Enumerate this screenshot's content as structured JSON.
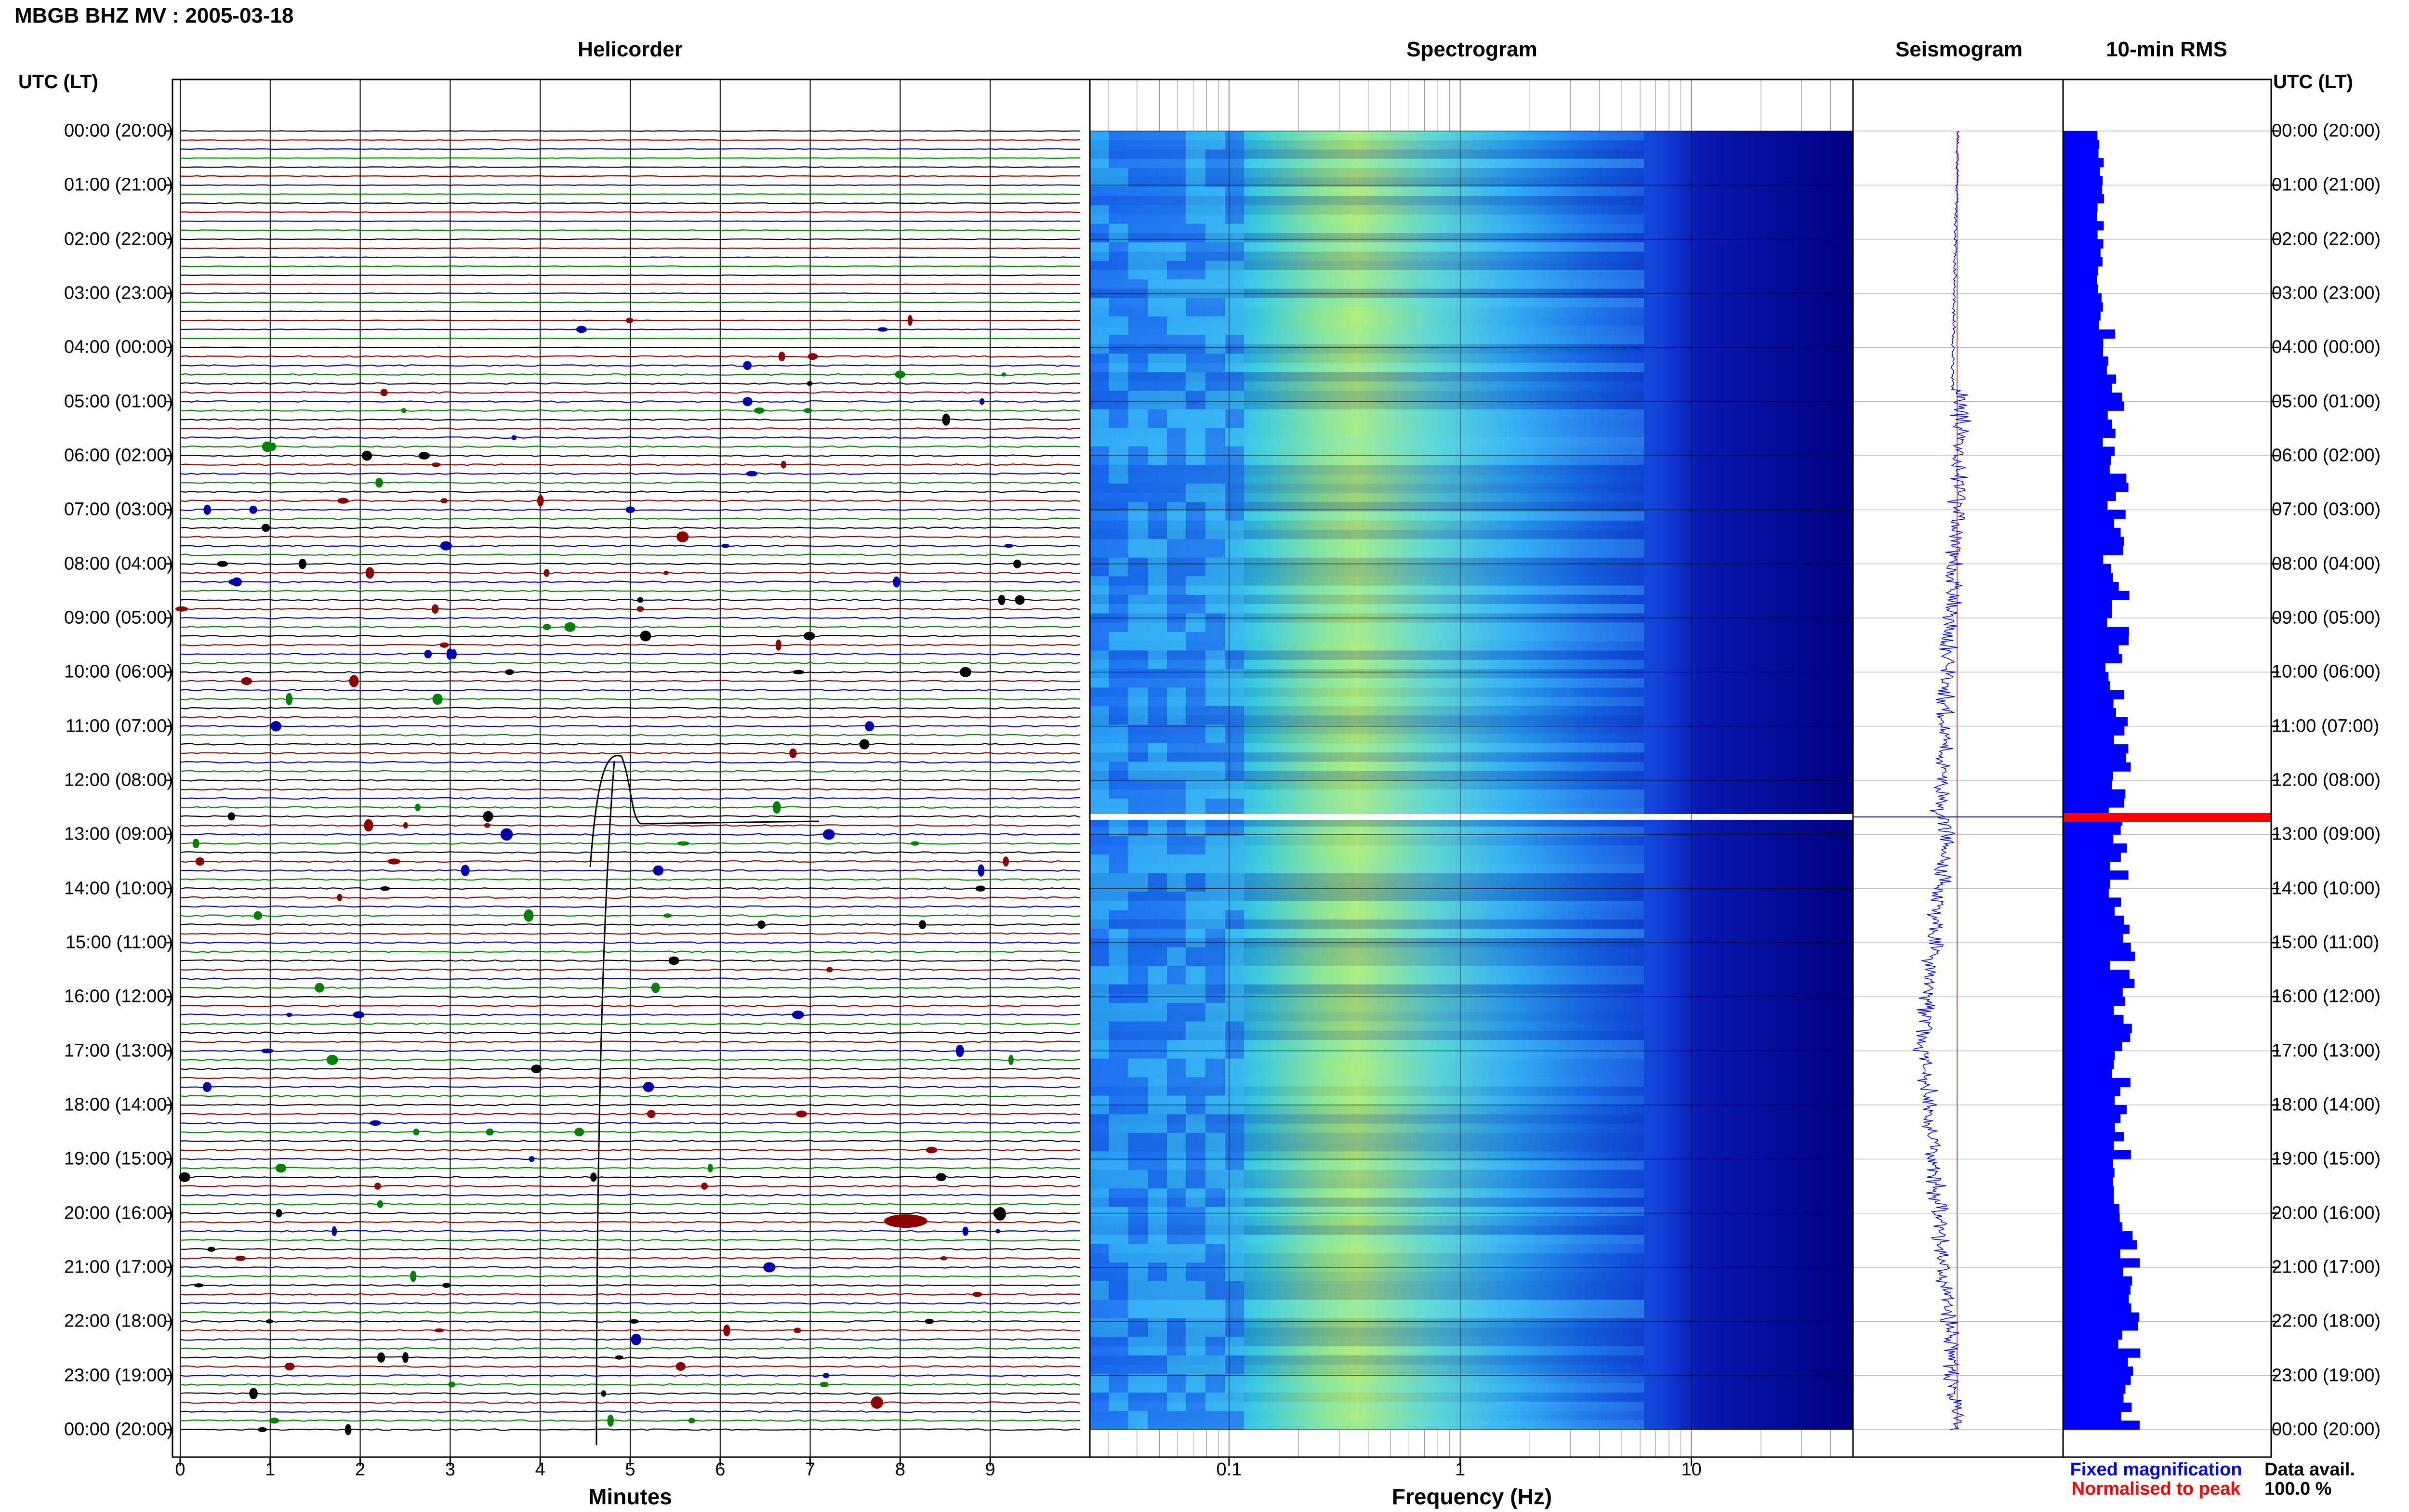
{
  "header": {
    "title": "MBGB BHZ MV : 2005-03-18",
    "utc_label_left": "UTC (LT)",
    "utc_label_right": "UTC (LT)"
  },
  "panels": {
    "helicorder": "Helicorder",
    "spectrogram": "Spectrogram",
    "seismogram": "Seismogram",
    "rms": "10-min RMS"
  },
  "axes": {
    "helicorder_xlabel": "Minutes",
    "spectrogram_xlabel": "Frequency (Hz)"
  },
  "legend": {
    "fixed": "Fixed magnification",
    "normalised": "Normalised to peak",
    "fixed_color": "#0000ff",
    "normalised_color": "#ff0000"
  },
  "data_avail": {
    "label": "Data avail.",
    "value": "100.0 %"
  },
  "time_labels": [
    "00:00 (20:00)",
    "01:00 (21:00)",
    "02:00 (22:00)",
    "03:00 (23:00)",
    "04:00 (00:00)",
    "05:00 (01:00)",
    "06:00 (02:00)",
    "07:00 (03:00)",
    "08:00 (04:00)",
    "09:00 (05:00)",
    "10:00 (06:00)",
    "11:00 (07:00)",
    "12:00 (08:00)",
    "13:00 (09:00)",
    "14:00 (10:00)",
    "15:00 (11:00)",
    "16:00 (12:00)",
    "17:00 (13:00)",
    "18:00 (14:00)",
    "19:00 (15:00)",
    "20:00 (16:00)",
    "21:00 (17:00)",
    "22:00 (18:00)",
    "23:00 (19:00)",
    "00:00 (20:00)"
  ],
  "chart_data": [
    {
      "type": "line",
      "title": "Helicorder",
      "xlabel": "Minutes",
      "x_ticks": [
        "0",
        "1",
        "2",
        "3",
        "4",
        "5",
        "6",
        "7",
        "8",
        "9"
      ],
      "xlim": [
        0,
        10
      ],
      "rows_per_hour": 6,
      "trace_colors": [
        "#000000",
        "#8b0000",
        "#0000aa",
        "#008000"
      ],
      "grid": true
    },
    {
      "type": "heatmap",
      "title": "Spectrogram",
      "xlabel": "Frequency (Hz)",
      "x_scale": "log",
      "x_ticks": [
        "0.1",
        "1",
        "10"
      ],
      "xlim": [
        0.025,
        50
      ],
      "colormap": [
        "#00007f",
        "#0000ff",
        "#0080ff",
        "#00e0ff",
        "#80ff80",
        "#ffff00"
      ]
    },
    {
      "type": "line",
      "title": "Seismogram",
      "legend": [
        "Fixed magnification",
        "Normalised to peak"
      ]
    },
    {
      "type": "bar",
      "title": "10-min RMS",
      "orientation": "horizontal",
      "bar_color": "#0000ff",
      "highlight_color": "#ff0000"
    }
  ]
}
